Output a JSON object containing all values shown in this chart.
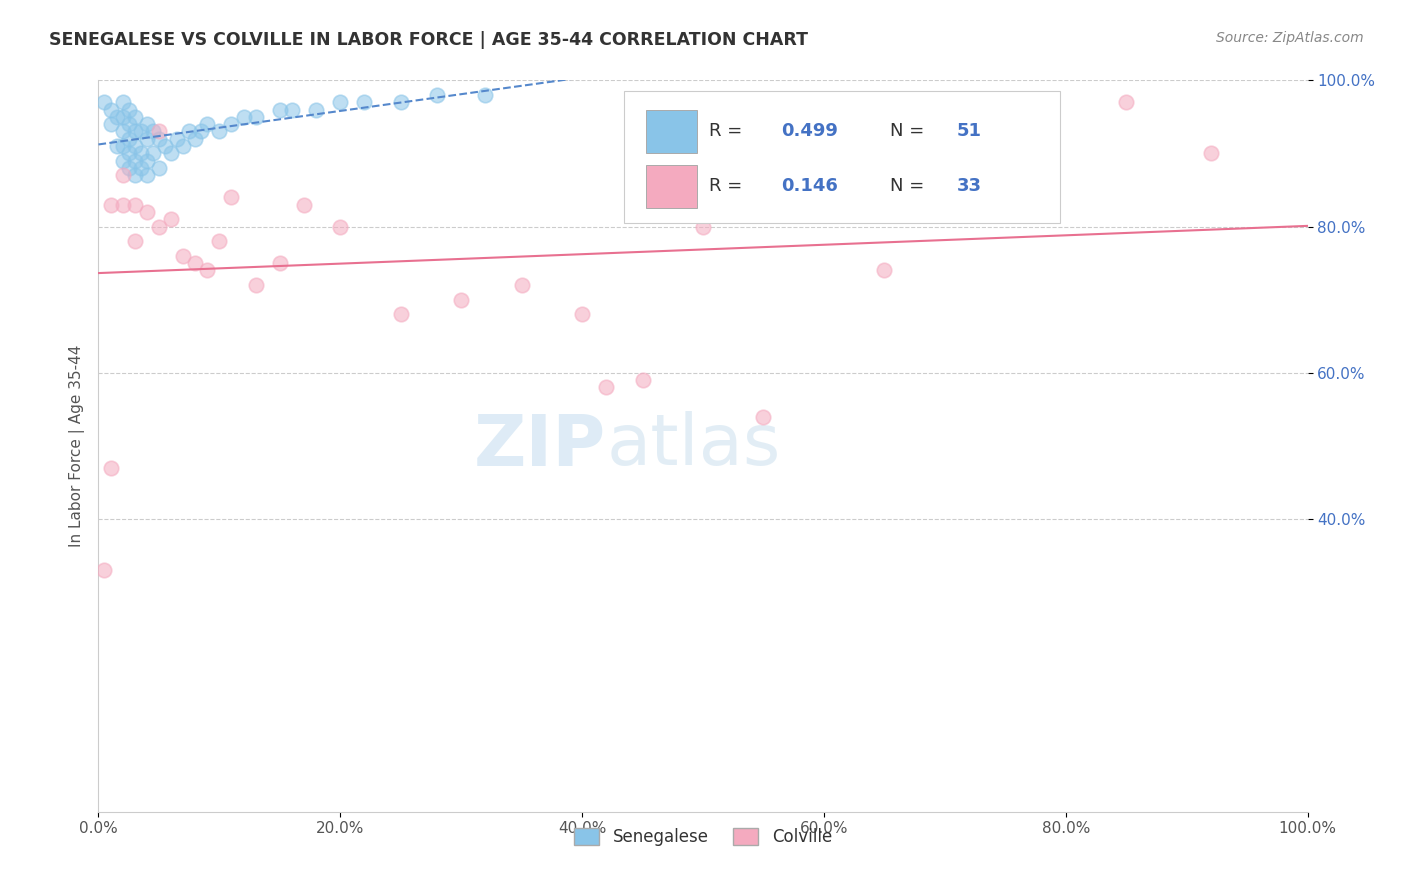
{
  "title": "SENEGALESE VS COLVILLE IN LABOR FORCE | AGE 35-44 CORRELATION CHART",
  "source_text": "Source: ZipAtlas.com",
  "ylabel": "In Labor Force | Age 35-44",
  "xlim": [
    0.0,
    1.0
  ],
  "ylim": [
    0.0,
    1.0
  ],
  "xtick_vals": [
    0.0,
    0.2,
    0.4,
    0.6,
    0.8,
    1.0
  ],
  "xtick_labels": [
    "0.0%",
    "20.0%",
    "40.0%",
    "60.0%",
    "80.0%",
    "100.0%"
  ],
  "ytick_vals": [
    0.4,
    0.6,
    0.8,
    1.0
  ],
  "ytick_labels": [
    "40.0%",
    "60.0%",
    "80.0%",
    "100.0%"
  ],
  "grid_color": "#cccccc",
  "background_color": "#ffffff",
  "blue_color": "#89C4E8",
  "pink_color": "#F4AABF",
  "blue_line_color": "#5588CC",
  "pink_line_color": "#E87090",
  "legend_R_blue": "0.499",
  "legend_N_blue": "51",
  "legend_R_pink": "0.146",
  "legend_N_pink": "33",
  "watermark_color": "#C8DFF0",
  "senegalese_x": [
    0.005,
    0.01,
    0.01,
    0.015,
    0.015,
    0.02,
    0.02,
    0.02,
    0.02,
    0.02,
    0.025,
    0.025,
    0.025,
    0.025,
    0.025,
    0.03,
    0.03,
    0.03,
    0.03,
    0.03,
    0.035,
    0.035,
    0.035,
    0.04,
    0.04,
    0.04,
    0.04,
    0.045,
    0.045,
    0.05,
    0.05,
    0.055,
    0.06,
    0.065,
    0.07,
    0.075,
    0.08,
    0.085,
    0.09,
    0.1,
    0.11,
    0.12,
    0.13,
    0.15,
    0.16,
    0.18,
    0.2,
    0.22,
    0.25,
    0.28,
    0.32
  ],
  "senegalese_y": [
    0.97,
    0.94,
    0.96,
    0.91,
    0.95,
    0.89,
    0.91,
    0.93,
    0.95,
    0.97,
    0.88,
    0.9,
    0.92,
    0.94,
    0.96,
    0.87,
    0.89,
    0.91,
    0.93,
    0.95,
    0.88,
    0.9,
    0.93,
    0.87,
    0.89,
    0.92,
    0.94,
    0.9,
    0.93,
    0.88,
    0.92,
    0.91,
    0.9,
    0.92,
    0.91,
    0.93,
    0.92,
    0.93,
    0.94,
    0.93,
    0.94,
    0.95,
    0.95,
    0.96,
    0.96,
    0.96,
    0.97,
    0.97,
    0.97,
    0.98,
    0.98
  ],
  "colville_x": [
    0.005,
    0.01,
    0.01,
    0.02,
    0.02,
    0.03,
    0.03,
    0.04,
    0.05,
    0.05,
    0.06,
    0.07,
    0.08,
    0.09,
    0.1,
    0.11,
    0.13,
    0.15,
    0.17,
    0.2,
    0.25,
    0.3,
    0.35,
    0.4,
    0.42,
    0.45,
    0.5,
    0.52,
    0.55,
    0.6,
    0.65,
    0.85,
    0.92
  ],
  "colville_y": [
    0.33,
    0.47,
    0.83,
    0.83,
    0.87,
    0.78,
    0.83,
    0.82,
    0.8,
    0.93,
    0.81,
    0.76,
    0.75,
    0.74,
    0.78,
    0.84,
    0.72,
    0.75,
    0.83,
    0.8,
    0.68,
    0.7,
    0.72,
    0.68,
    0.58,
    0.59,
    0.8,
    0.83,
    0.54,
    0.83,
    0.74,
    0.97,
    0.9
  ]
}
